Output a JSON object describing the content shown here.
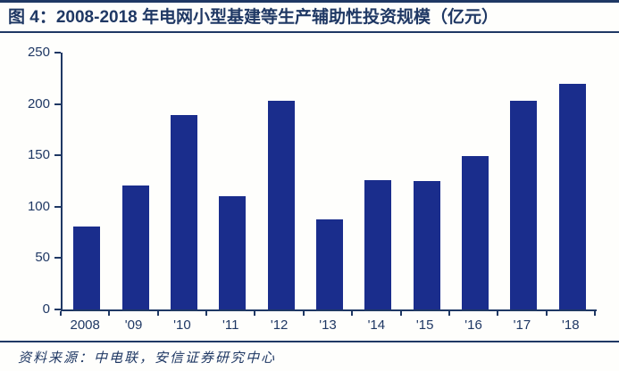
{
  "header": {
    "title": "图 4：2008-2018 年电网小型基建等生产辅助性投资规模（亿元）"
  },
  "footer": {
    "source": "资料来源：中电联，安信证券研究中心"
  },
  "colors": {
    "navy": "#1f3864",
    "bar": "#1a2d8c",
    "background": "#fefefc"
  },
  "chart_data": {
    "type": "bar",
    "title": "2008-2018 年电网小型基建等生产辅助性投资规模（亿元）",
    "categories": [
      "2008",
      "'09",
      "'10",
      "'11",
      "'12",
      "'13",
      "'14",
      "'15",
      "'16",
      "'17",
      "'18"
    ],
    "values": [
      81,
      121,
      189,
      110,
      203,
      88,
      126,
      125,
      149,
      203,
      220
    ],
    "xlabel": "",
    "ylabel": "",
    "ylim": [
      0,
      250
    ],
    "yticks": [
      0,
      50,
      100,
      150,
      200,
      250
    ],
    "grid": false,
    "legend": "none"
  }
}
